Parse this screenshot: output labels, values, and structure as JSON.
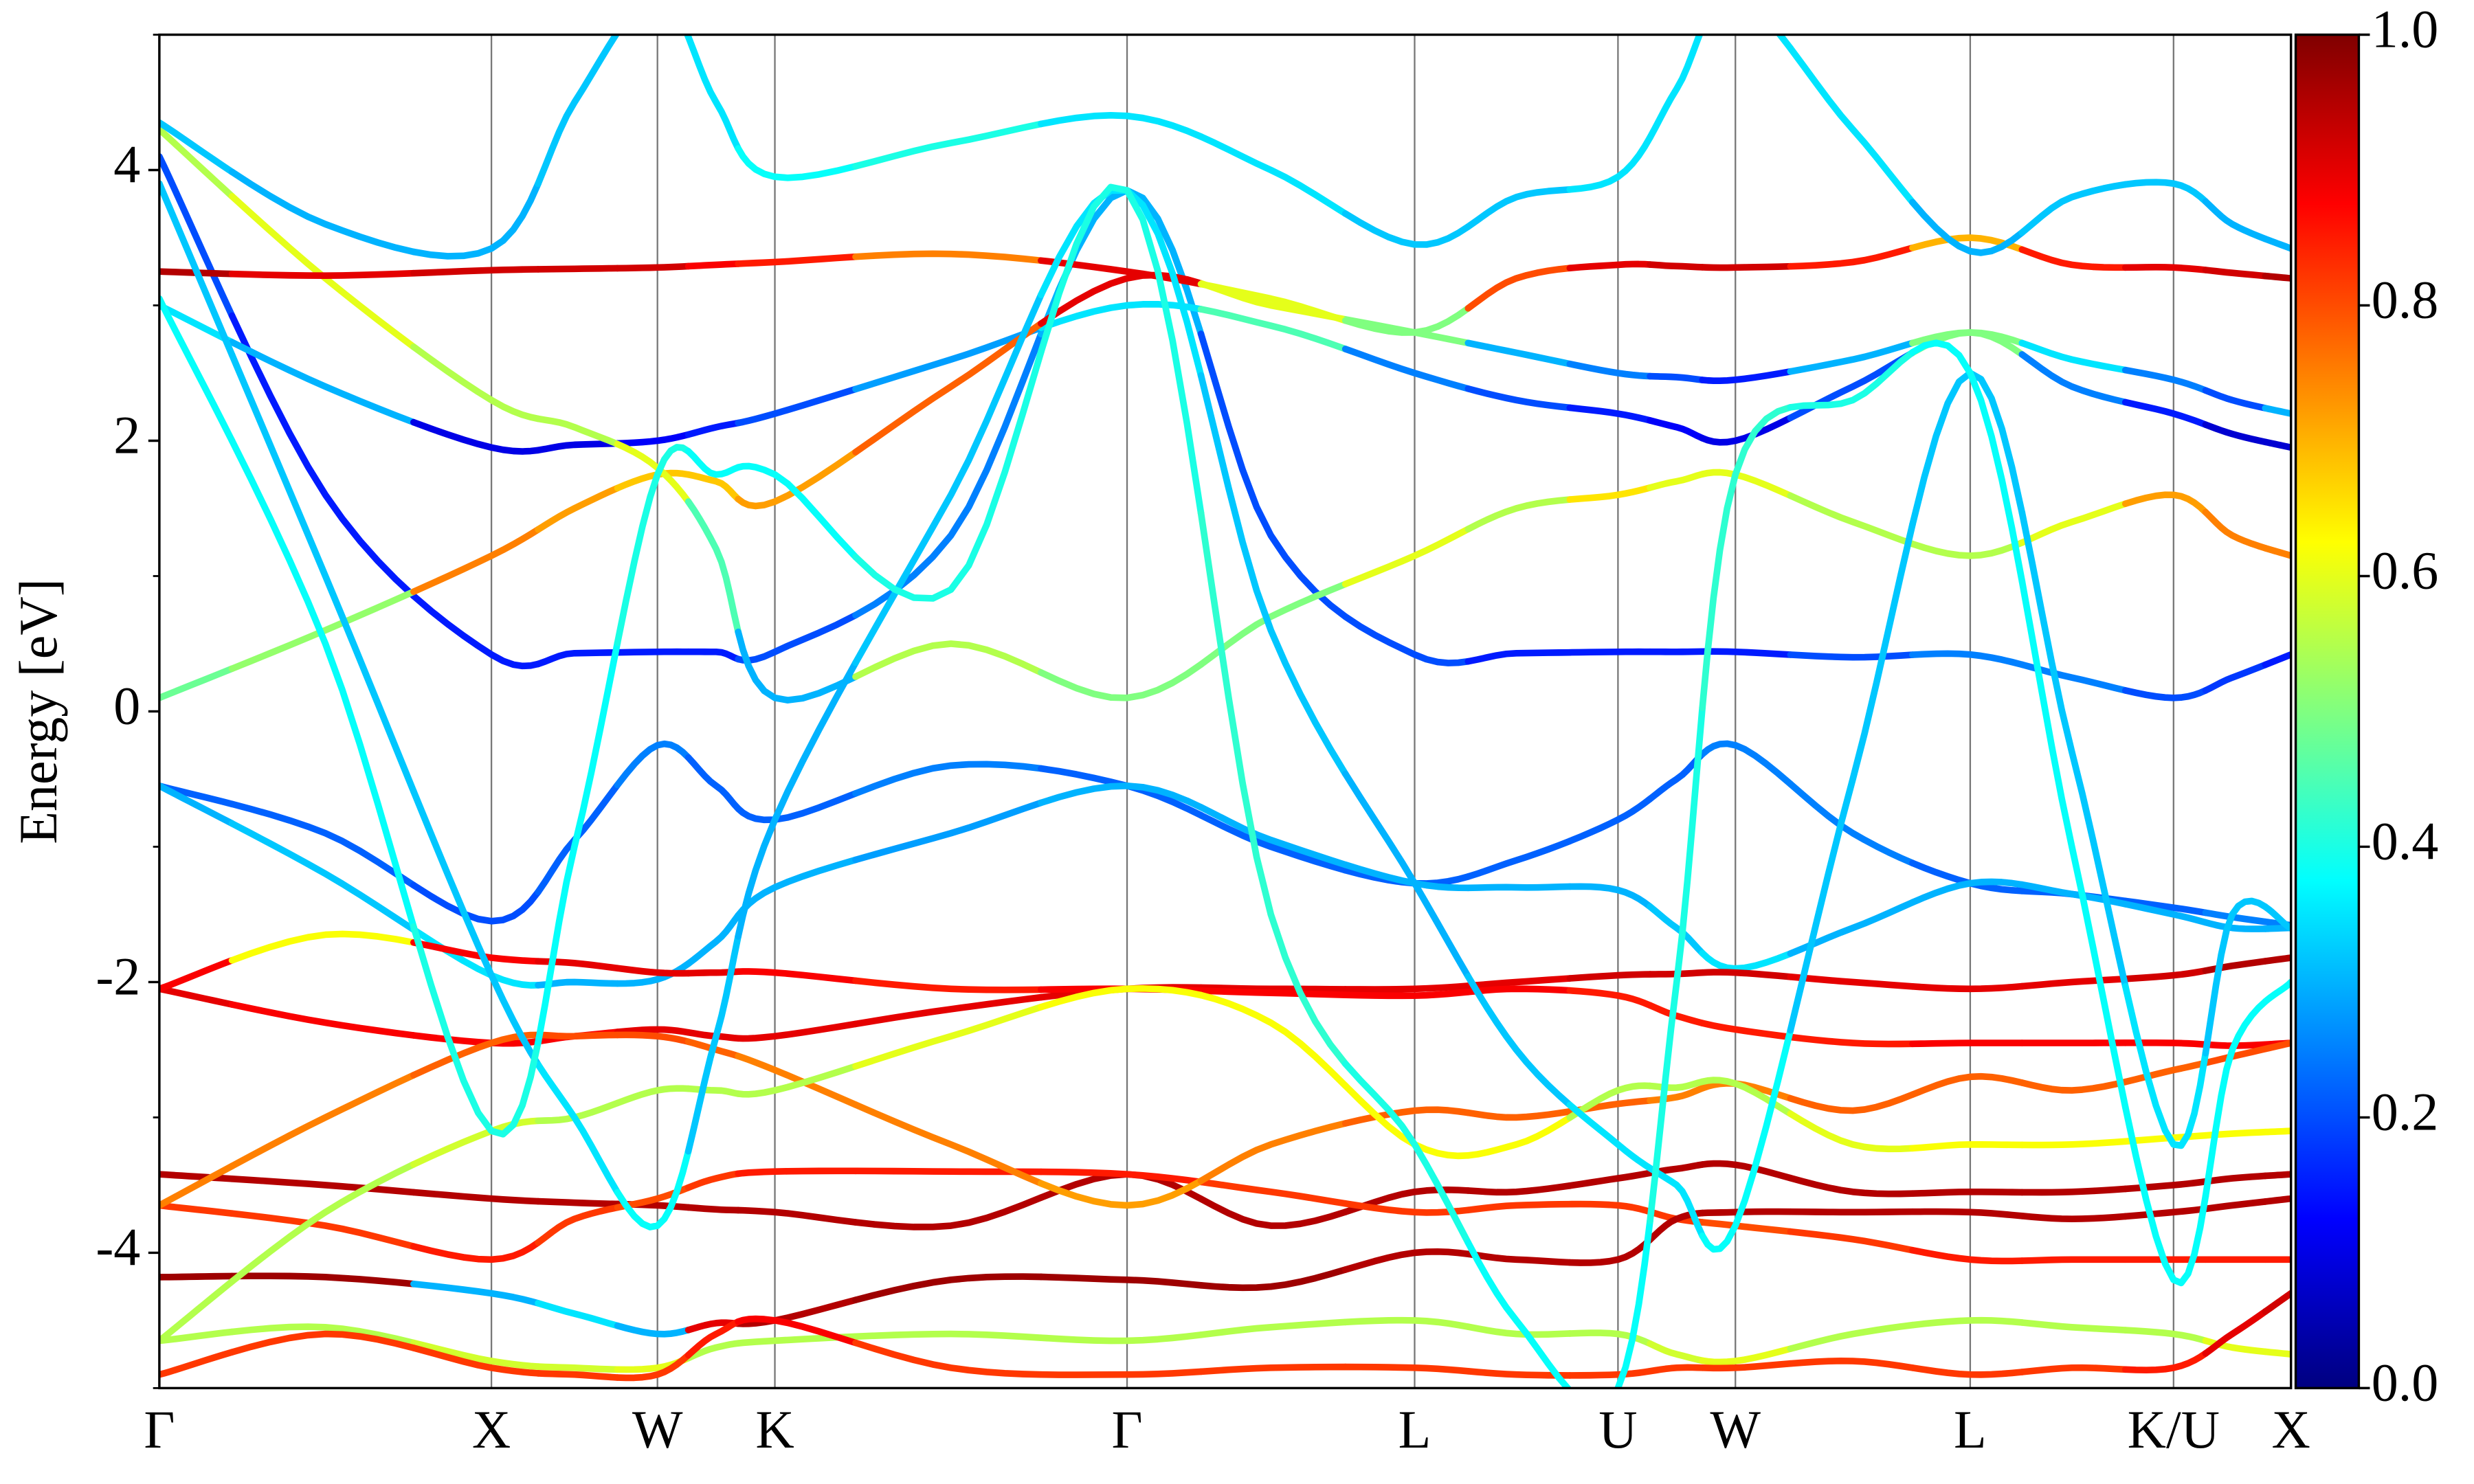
{
  "chart_data": {
    "type": "line",
    "ylabel": "Energy [eV]",
    "x": [
      0,
      0.5,
      1,
      1.25,
      1.5,
      1.6768,
      1.8536,
      2.3839,
      2.9142,
      3.3472,
      3.7802,
      4.0864,
      4.3926,
      4.5694,
      4.7462,
      5.0998,
      5.4533,
      5.7595,
      6.0657,
      6.2425,
      6.4193
    ],
    "xlim": [
      0,
      6.4193
    ],
    "xticks": [
      {
        "value": 0,
        "label": "Γ"
      },
      {
        "value": 1,
        "label": "X"
      },
      {
        "value": 1.5,
        "label": "W"
      },
      {
        "value": 1.8536,
        "label": "K"
      },
      {
        "value": 2.9142,
        "label": "Γ"
      },
      {
        "value": 3.7802,
        "label": "L"
      },
      {
        "value": 4.3926,
        "label": "U"
      },
      {
        "value": 4.7462,
        "label": "W"
      },
      {
        "value": 5.4533,
        "label": "L"
      },
      {
        "value": 6.0657,
        "label": "K/U"
      },
      {
        "value": 6.4193,
        "label": "X"
      }
    ],
    "ylim": [
      -5,
      5
    ],
    "yticks": [
      -4,
      -2,
      0,
      2,
      4
    ],
    "yminorticks": [
      -5,
      -3,
      -1,
      1,
      3,
      5
    ],
    "colormap": "jet",
    "clim": [
      0,
      1
    ],
    "cticks": [
      {
        "value": 0,
        "label": "0.0"
      },
      {
        "value": 0.2,
        "label": "0.2"
      },
      {
        "value": 0.4,
        "label": "0.4"
      },
      {
        "value": 0.6,
        "label": "0.6"
      },
      {
        "value": 0.8,
        "label": "0.8"
      },
      {
        "value": 1,
        "label": "1.0"
      }
    ],
    "series": [
      {
        "values": [
          -0.55,
          -0.9,
          -1.55,
          -0.95,
          -0.25,
          -0.55,
          -0.8,
          -0.4,
          -0.55,
          -1.0,
          -1.27,
          -1.1,
          -0.8,
          -0.5,
          -0.25,
          -0.9,
          -1.27,
          -1.35,
          -1.45,
          -1.52,
          -1.58
        ],
        "weights": [
          0.22,
          0.22,
          0.2,
          0.22,
          0.25,
          0.22,
          0.22,
          0.25,
          0.22,
          0.22,
          0.22,
          0.22,
          0.22,
          0.22,
          0.25,
          0.25,
          0.22,
          0.22,
          0.22,
          0.25,
          0.25
        ]
      },
      {
        "values": [
          -0.55,
          -1.2,
          -1.95,
          -2.0,
          -1.98,
          -1.7,
          -1.3,
          -0.9,
          -0.55,
          -0.95,
          -1.27,
          -1.3,
          -1.32,
          -1.6,
          -1.9,
          -1.6,
          -1.27,
          -1.35,
          -1.5,
          -1.6,
          -1.6
        ],
        "weights": [
          0.3,
          0.32,
          0.35,
          0.3,
          0.3,
          0.3,
          0.3,
          0.28,
          0.3,
          0.3,
          0.3,
          0.3,
          0.3,
          0.32,
          0.35,
          0.3,
          0.3,
          0.3,
          0.3,
          0.3,
          0.3
        ]
      },
      {
        "values": [
          4.1,
          1.6,
          0.42,
          0.43,
          0.44,
          0.44,
          0.44,
          1.3,
          3.85,
          1.3,
          0.42,
          0.43,
          0.44,
          0.44,
          0.44,
          0.4,
          0.42,
          0.25,
          0.1,
          0.25,
          0.42
        ],
        "weights": [
          0.2,
          0.15,
          0.15,
          0.15,
          0.15,
          0.15,
          0.2,
          0.25,
          0.3,
          0.2,
          0.2,
          0.15,
          0.15,
          0.15,
          0.15,
          0.2,
          0.25,
          0.25,
          0.2,
          0.18,
          0.15
        ]
      },
      {
        "values": [
          3.0,
          2.4,
          1.95,
          1.97,
          2.0,
          2.1,
          2.2,
          2.6,
          3.0,
          2.85,
          2.5,
          2.3,
          2.2,
          2.1,
          2.0,
          2.4,
          2.8,
          2.4,
          2.2,
          2.05,
          1.95
        ],
        "weights": [
          0.35,
          0.3,
          0.1,
          0.1,
          0.12,
          0.15,
          0.2,
          0.28,
          0.35,
          0.45,
          0.25,
          0.2,
          0.15,
          0.12,
          0.1,
          0.2,
          0.5,
          0.25,
          0.15,
          0.08,
          0.08
        ]
      },
      {
        "values": [
          0.1,
          0.6,
          1.15,
          1.5,
          1.75,
          1.7,
          1.55,
          2.4,
          3.2,
          3.0,
          2.8,
          2.65,
          2.5,
          2.47,
          2.45,
          2.6,
          2.8,
          2.6,
          2.45,
          2.3,
          2.2
        ],
        "weights": [
          0.48,
          0.52,
          0.75,
          0.72,
          0.68,
          0.68,
          0.72,
          0.78,
          0.9,
          0.6,
          0.5,
          0.3,
          0.25,
          0.2,
          0.15,
          0.3,
          0.5,
          0.35,
          0.25,
          0.2,
          0.3
        ]
      },
      {
        "values": [
          4.3,
          3.2,
          2.3,
          2.1,
          1.8,
          1.2,
          0.1,
          0.5,
          0.1,
          0.7,
          1.15,
          1.5,
          1.6,
          1.7,
          1.75,
          1.4,
          1.15,
          1.4,
          1.6,
          1.3,
          1.15
        ],
        "weights": [
          0.55,
          0.6,
          0.55,
          0.55,
          0.6,
          0.45,
          0.3,
          0.55,
          0.5,
          0.5,
          0.6,
          0.55,
          0.65,
          0.6,
          0.6,
          0.55,
          0.55,
          0.6,
          0.72,
          0.75,
          0.75
        ]
      },
      {
        "values": [
          3.25,
          3.22,
          3.26,
          3.27,
          3.28,
          3.3,
          3.32,
          3.38,
          3.25,
          3.05,
          2.8,
          3.2,
          3.3,
          3.29,
          3.28,
          3.32,
          3.5,
          3.3,
          3.28,
          3.24,
          3.2
        ],
        "weights": [
          0.95,
          0.9,
          0.92,
          0.92,
          0.92,
          0.88,
          0.85,
          0.75,
          0.9,
          0.6,
          0.5,
          0.8,
          0.9,
          0.92,
          0.92,
          0.85,
          0.7,
          0.85,
          0.9,
          0.92,
          0.95
        ]
      },
      {
        "values": [
          4.35,
          3.6,
          3.42,
          4.5,
          5.3,
          4.5,
          3.95,
          4.2,
          4.4,
          4.0,
          3.45,
          3.8,
          3.95,
          4.6,
          5.3,
          4.3,
          3.4,
          3.8,
          3.9,
          3.6,
          3.42
        ],
        "weights": [
          0.32,
          0.3,
          0.3,
          0.32,
          0.35,
          0.35,
          0.38,
          0.4,
          0.35,
          0.35,
          0.32,
          0.32,
          0.35,
          0.35,
          0.35,
          0.35,
          0.3,
          0.32,
          0.32,
          0.3,
          0.3
        ]
      },
      {
        "values": [
          -2.05,
          -2.3,
          -2.45,
          -2.4,
          -2.35,
          -2.4,
          -2.4,
          -2.2,
          -2.05,
          -2.05,
          -2.05,
          -2.0,
          -1.95,
          -1.94,
          -1.93,
          -2.0,
          -2.05,
          -2.0,
          -1.95,
          -1.88,
          -1.82
        ],
        "weights": [
          0.9,
          0.88,
          0.88,
          0.88,
          0.9,
          0.9,
          0.9,
          0.9,
          0.9,
          0.9,
          0.9,
          0.9,
          0.92,
          0.92,
          0.92,
          0.9,
          0.9,
          0.9,
          0.92,
          0.95,
          0.95
        ]
      },
      {
        "values": [
          -2.05,
          -1.65,
          -1.82,
          -1.86,
          -1.93,
          -1.93,
          -1.93,
          -2.05,
          -2.05,
          -2.08,
          -2.1,
          -2.05,
          -2.1,
          -2.25,
          -2.35,
          -2.45,
          -2.45,
          -2.45,
          -2.45,
          -2.47,
          -2.45
        ],
        "weights": [
          0.88,
          0.62,
          0.88,
          0.9,
          0.9,
          0.9,
          0.88,
          0.85,
          0.88,
          0.88,
          0.88,
          0.88,
          0.85,
          0.85,
          0.85,
          0.85,
          0.88,
          0.88,
          0.88,
          0.88,
          0.88
        ]
      },
      {
        "values": [
          -3.42,
          -3.5,
          -3.6,
          -3.63,
          -3.65,
          -3.68,
          -3.7,
          -3.8,
          -3.42,
          -3.8,
          -3.55,
          -3.55,
          -3.45,
          -3.38,
          -3.35,
          -3.55,
          -3.55,
          -3.55,
          -3.5,
          -3.45,
          -3.42
        ],
        "weights": [
          0.95,
          0.95,
          0.95,
          0.95,
          0.95,
          0.95,
          0.95,
          0.95,
          0.95,
          0.95,
          0.95,
          0.95,
          0.95,
          0.95,
          0.95,
          0.95,
          0.95,
          0.95,
          0.95,
          0.95,
          0.95
        ]
      },
      {
        "values": [
          -3.65,
          -3.8,
          -4.05,
          -3.75,
          -3.6,
          -3.45,
          -3.4,
          -3.4,
          -3.42,
          -3.55,
          -3.7,
          -3.65,
          -3.65,
          -3.75,
          -3.8,
          -3.9,
          -4.05,
          -4.05,
          -4.05,
          -4.05,
          -4.05
        ],
        "weights": [
          0.82,
          0.82,
          0.85,
          0.82,
          0.8,
          0.82,
          0.85,
          0.85,
          0.85,
          0.82,
          0.82,
          0.82,
          0.82,
          0.82,
          0.8,
          0.82,
          0.85,
          0.85,
          0.85,
          0.85,
          0.85
        ]
      },
      {
        "values": [
          -4.18,
          -4.18,
          -4.3,
          -4.45,
          -4.6,
          -4.52,
          -4.5,
          -4.2,
          -4.2,
          -4.25,
          -4.0,
          -4.05,
          -4.05,
          -3.75,
          -3.7,
          -3.7,
          -3.7,
          -3.75,
          -3.7,
          -3.65,
          -3.6
        ],
        "weights": [
          0.97,
          0.97,
          0.3,
          0.35,
          0.3,
          0.9,
          0.95,
          0.97,
          0.97,
          0.97,
          0.95,
          0.95,
          0.95,
          0.95,
          0.95,
          0.95,
          0.95,
          0.95,
          0.95,
          0.95,
          0.95
        ]
      },
      {
        "values": [
          -3.65,
          -3.0,
          -2.45,
          -2.4,
          -2.4,
          -2.5,
          -2.65,
          -3.2,
          -3.65,
          -3.2,
          -2.95,
          -3.0,
          -2.9,
          -2.85,
          -2.75,
          -2.95,
          -2.7,
          -2.8,
          -2.65,
          -2.55,
          -2.45
        ],
        "weights": [
          0.75,
          0.75,
          0.78,
          0.8,
          0.8,
          0.78,
          0.75,
          0.75,
          0.72,
          0.75,
          0.78,
          0.78,
          0.78,
          0.75,
          0.75,
          0.78,
          0.78,
          0.78,
          0.78,
          0.8,
          0.8
        ]
      },
      {
        "values": [
          -4.65,
          -3.7,
          -3.1,
          -3.0,
          -2.8,
          -2.8,
          -2.8,
          -2.4,
          -2.05,
          -2.3,
          -3.2,
          -3.2,
          -2.8,
          -2.78,
          -2.75,
          -3.2,
          -3.2,
          -3.2,
          -3.15,
          -3.12,
          -3.1
        ],
        "weights": [
          0.55,
          0.55,
          0.58,
          0.55,
          0.55,
          0.55,
          0.55,
          0.6,
          0.62,
          0.62,
          0.62,
          0.62,
          0.55,
          0.55,
          0.55,
          0.6,
          0.62,
          0.62,
          0.62,
          0.62,
          0.62
        ]
      },
      {
        "values": [
          -4.65,
          -4.55,
          -4.8,
          -4.85,
          -4.85,
          -4.7,
          -4.65,
          -4.6,
          -4.65,
          -4.55,
          -4.5,
          -4.6,
          -4.6,
          -4.75,
          -4.8,
          -4.6,
          -4.5,
          -4.55,
          -4.6,
          -4.7,
          -4.75
        ],
        "weights": [
          0.55,
          0.55,
          0.58,
          0.58,
          0.6,
          0.55,
          0.55,
          0.55,
          0.55,
          0.55,
          0.55,
          0.55,
          0.55,
          0.58,
          0.6,
          0.55,
          0.55,
          0.55,
          0.55,
          0.6,
          0.6
        ]
      },
      {
        "values": [
          -4.9,
          -4.6,
          -4.85,
          -4.9,
          -4.9,
          -4.6,
          -4.5,
          -4.85,
          -4.9,
          -4.85,
          -4.85,
          -4.9,
          -4.9,
          -4.85,
          -4.85,
          -4.8,
          -4.9,
          -4.85,
          -4.85,
          -4.6,
          -4.3
        ],
        "weights": [
          0.82,
          0.82,
          0.82,
          0.82,
          0.82,
          0.85,
          0.88,
          0.82,
          0.82,
          0.82,
          0.82,
          0.82,
          0.82,
          0.82,
          0.82,
          0.82,
          0.82,
          0.82,
          0.85,
          0.9,
          0.92
        ]
      },
      {
        "values": [
          3.9,
          1.0,
          -1.95,
          -3.0,
          -3.8,
          -2.4,
          -0.8,
          1.6,
          3.85,
          0.6,
          -1.27,
          -2.5,
          -3.2,
          -3.5,
          -3.8,
          -0.5,
          2.5,
          -0.3,
          -3.2,
          -1.5,
          -1.6
        ],
        "weights": [
          0.32,
          0.32,
          0.32,
          0.35,
          0.38,
          0.32,
          0.3,
          0.32,
          0.35,
          0.32,
          0.3,
          0.32,
          0.35,
          0.35,
          0.38,
          0.32,
          0.32,
          0.32,
          0.35,
          0.32,
          0.32
        ]
      },
      {
        "values": [
          3.05,
          0.5,
          -3.1,
          -1.0,
          1.75,
          1.75,
          1.75,
          0.9,
          3.85,
          -1.5,
          -3.2,
          -4.5,
          -5.0,
          -2.0,
          1.75,
          2.3,
          2.5,
          -1.0,
          -4.2,
          -2.5,
          -2.0
        ],
        "weights": [
          0.38,
          0.38,
          0.4,
          0.38,
          0.4,
          0.38,
          0.38,
          0.4,
          0.4,
          0.42,
          0.4,
          0.38,
          0.38,
          0.4,
          0.42,
          0.4,
          0.38,
          0.38,
          0.38,
          0.38,
          0.38
        ]
      }
    ]
  }
}
